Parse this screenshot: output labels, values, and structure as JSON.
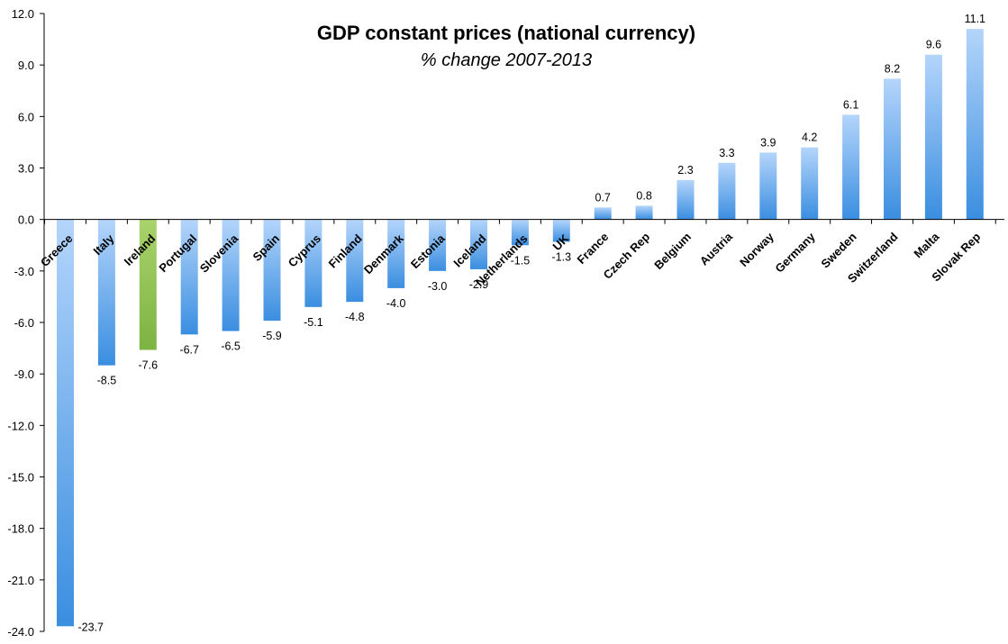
{
  "chart_data": {
    "type": "bar",
    "title": "GDP constant prices (national currency)",
    "subtitle": "% change 2007-2013",
    "xlabel": "",
    "ylabel": "",
    "ylim": [
      -24,
      12
    ],
    "yticks": [
      12,
      9,
      6,
      3,
      0,
      -3,
      -6,
      -9,
      -12,
      -15,
      -18,
      -21,
      -24
    ],
    "ytick_labels": [
      "12.0",
      "9.0",
      "6.0",
      "3.0",
      "0.0",
      "-3.0",
      "-6.0",
      "-9.0",
      "-12.0",
      "-15.0",
      "-18.0",
      "-21.0",
      "-24.0"
    ],
    "grid": false,
    "categories": [
      "Greece",
      "Italy",
      "Ireland",
      "Portugal",
      "Slovenia",
      "Spain",
      "Cyprus",
      "Finland",
      "Denmark",
      "Estonia",
      "Iceland",
      "Netherlands",
      "UK",
      "France",
      "Czech Rep",
      "Belgium",
      "Austria",
      "Norway",
      "Germany",
      "Sweden",
      "Switzerland",
      "Malta",
      "Slovak Rep"
    ],
    "values": [
      -23.7,
      -8.5,
      -7.6,
      -6.7,
      -6.5,
      -5.9,
      -5.1,
      -4.8,
      -4.0,
      -3.0,
      -2.9,
      -1.5,
      -1.3,
      0.7,
      0.8,
      2.3,
      3.3,
      3.9,
      4.2,
      6.1,
      8.2,
      9.6,
      11.1
    ],
    "value_labels": [
      "-23.7",
      "-8.5",
      "-7.6",
      "-6.7",
      "-6.5",
      "-5.9",
      "-5.1",
      "-4.8",
      "-4.0",
      "-3.0",
      "-2.9",
      "-1.5",
      "-1.3",
      "0.7",
      "0.8",
      "2.3",
      "3.3",
      "3.9",
      "4.2",
      "6.1",
      "8.2",
      "9.6",
      "11.1"
    ],
    "highlight_category": "Ireland",
    "colors": {
      "bar_dark": "#3a8ee0",
      "bar_light": "#b4d5fb",
      "highlight_dark": "#7cb342",
      "highlight_light": "#a9d36c",
      "axis": "#000000"
    }
  }
}
